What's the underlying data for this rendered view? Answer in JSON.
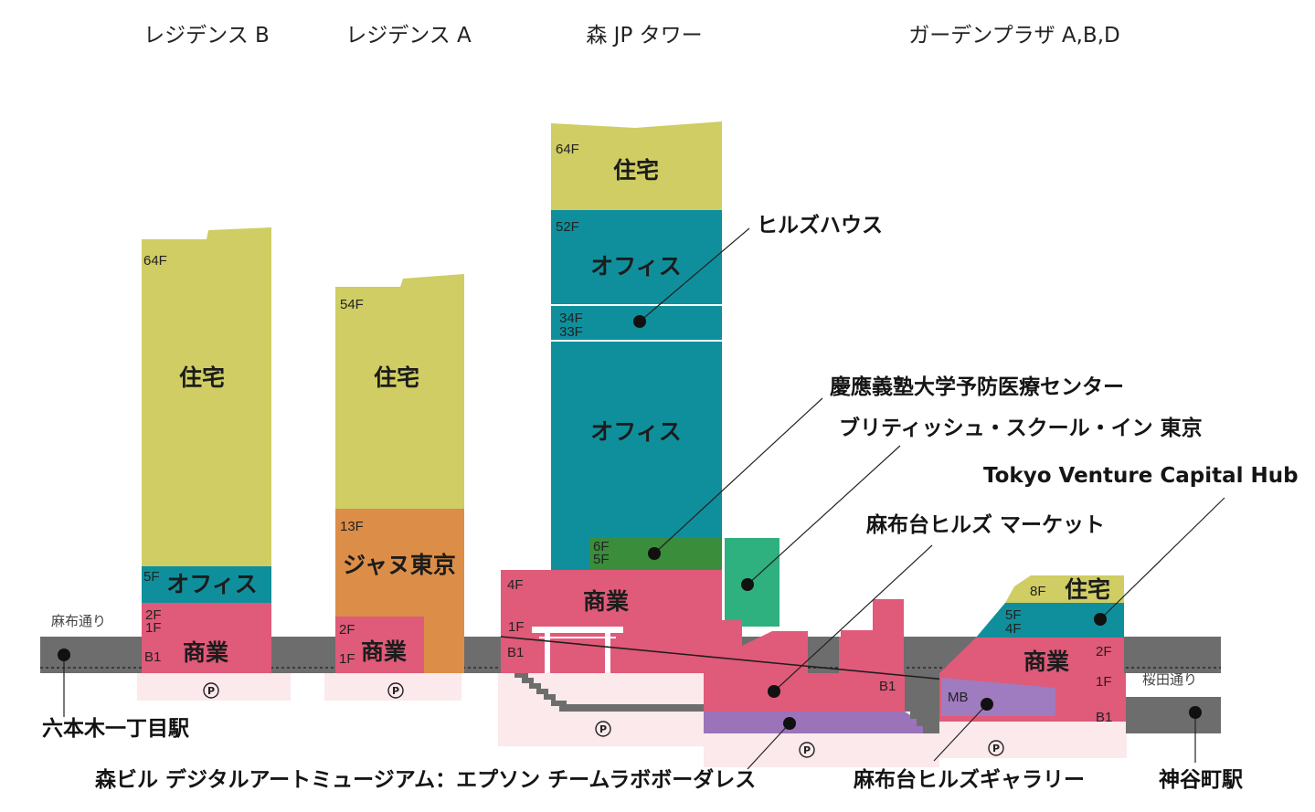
{
  "headers": {
    "residence_b": "レジデンス B",
    "residence_a": "レジデンス A",
    "mori_jp_tower": "森 JP タワー",
    "garden_plaza": "ガーデンプラザ A,B,D"
  },
  "residence_b": {
    "f64": "64F",
    "residential": "住宅",
    "f5": "5F",
    "office": "オフィス",
    "f2": "2F",
    "f1": "1F",
    "b1": "B1",
    "commercial": "商業"
  },
  "residence_a": {
    "f54": "54F",
    "residential": "住宅",
    "f13": "13F",
    "jana_tokyo": "ジャヌ東京",
    "f2": "2F",
    "f1": "1F",
    "commercial": "商業"
  },
  "tower": {
    "f64": "64F",
    "residential": "住宅",
    "f52": "52F",
    "office_upper": "オフィス",
    "f34": "34F",
    "f33": "33F",
    "office_lower": "オフィス",
    "f6": "6F",
    "f5": "5F",
    "f4": "4F",
    "commercial": "商業",
    "f1": "1F",
    "b1": "B1"
  },
  "garden": {
    "f8": "8F",
    "residential": "住宅",
    "f5": "5F",
    "f4": "4F",
    "commercial": "商業",
    "f2": "2F",
    "f1": "1F",
    "b1": "B1",
    "mb": "MB"
  },
  "market_b1": "B1",
  "callouts": {
    "hills_house": "ヒルズハウス",
    "keio_center": "慶應義塾大学予防医療センター",
    "british_school": "ブリティッシュ・スクール・イン 東京",
    "tvch": "Tokyo Venture Capital Hub",
    "market": "麻布台ヒルズ マーケット",
    "digital_art": "森ビル デジタルアートミュージアム：エプソン チームラボボーダレス",
    "gallery": "麻布台ヒルズギャラリー"
  },
  "streets": {
    "azabu": "麻布通り",
    "sakurada": "桜田通り"
  },
  "stations": {
    "roppongi": "六本木一丁目駅",
    "kamiyacho": "神谷町駅"
  },
  "parking_symbol": "P",
  "colors": {
    "residential": "#cfcd63",
    "office": "#0f8f9c",
    "commercial": "#e05a79",
    "hotel": "#dc8e48",
    "clinic": "#3a8d3a",
    "school": "#2fb07f",
    "museum": "#9b73b8",
    "gallery": "#9f7bc0",
    "ground": "#6d6d6d",
    "parking": "#fbe9ec"
  }
}
